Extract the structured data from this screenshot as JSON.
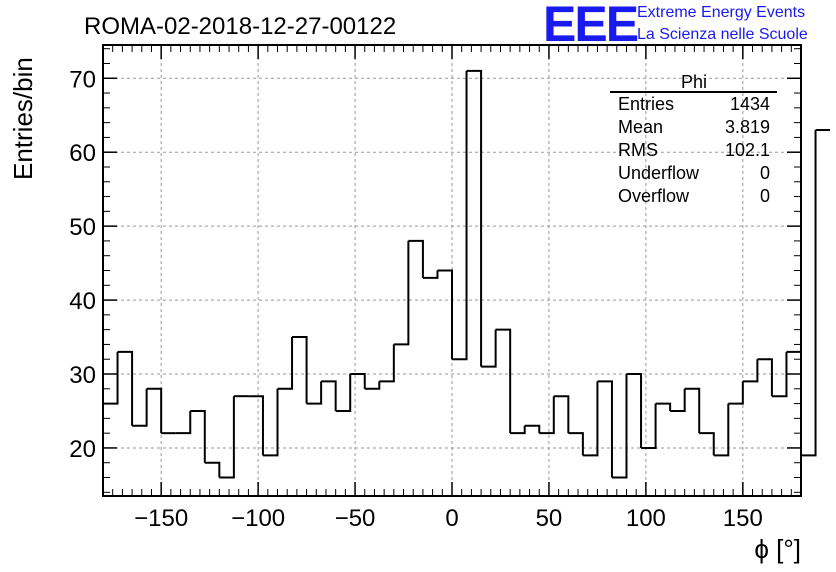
{
  "header": {
    "title": "ROMA-02-2018-12-27-00122",
    "logo_text": "EEE",
    "logo_line1": "Extreme Energy Events",
    "logo_line2": "La Scienza nelle Scuole",
    "logo_color": "#1a1aee"
  },
  "stats": {
    "name": "Phi",
    "rows": [
      {
        "label": "Entries",
        "value": "1434"
      },
      {
        "label": "Mean",
        "value": "3.819"
      },
      {
        "label": "RMS",
        "value": "102.1"
      },
      {
        "label": "Underflow",
        "value": "0"
      },
      {
        "label": "Overflow",
        "value": "0"
      }
    ]
  },
  "chart_data": {
    "type": "histogram",
    "title": "ROMA-02-2018-12-27-00122",
    "xlabel": "ϕ [°]",
    "ylabel": "Entries/bin",
    "xlim": [
      -180,
      180
    ],
    "ylim": [
      13.5,
      74.5
    ],
    "bin_width": 7.5,
    "bin_start": -180,
    "values": [
      26,
      33,
      23,
      28,
      22,
      22,
      25,
      18,
      16,
      27,
      27,
      19,
      28,
      35,
      26,
      29,
      25,
      30,
      28,
      29,
      34,
      48,
      43,
      44,
      32,
      71,
      31,
      36,
      22,
      23,
      22,
      27,
      22,
      19,
      29,
      16,
      30,
      20,
      26,
      25,
      28,
      22,
      19,
      26,
      29,
      32,
      27,
      33,
      19,
      63
    ],
    "xticks": [
      -150,
      -100,
      -50,
      0,
      50,
      100,
      150
    ],
    "xtick_labels": [
      "−150",
      "−100",
      "−50",
      "0",
      "50",
      "100",
      "150"
    ],
    "yticks": [
      20,
      30,
      40,
      50,
      60,
      70
    ],
    "ytick_labels": [
      "20",
      "30",
      "40",
      "50",
      "60",
      "70"
    ],
    "grid": true,
    "legend": "top-right"
  }
}
